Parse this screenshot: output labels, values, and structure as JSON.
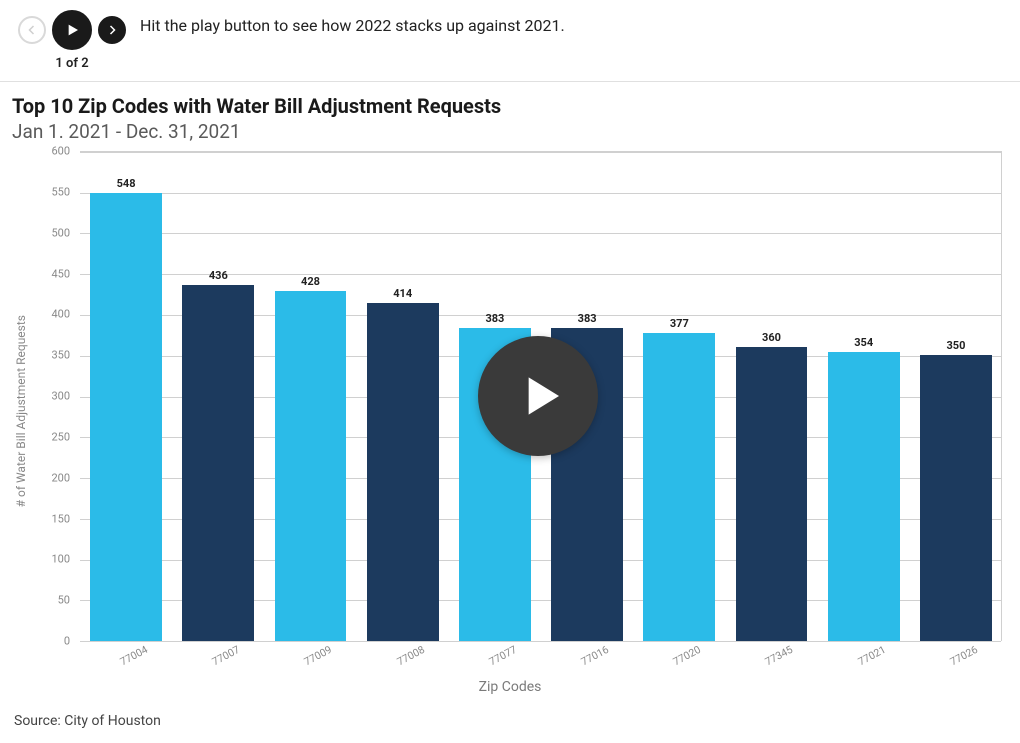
{
  "controls": {
    "counter": "1 of 2",
    "hint": "Hit the play button to see how 2022 stacks up against 2021."
  },
  "chart": {
    "type": "bar",
    "title": "Top 10 Zip Codes with Water Bill Adjustment Requests",
    "subtitle": "Jan 1. 2021 - Dec. 31, 2021",
    "xaxis_title": "Zip Codes",
    "yaxis_title": "# of Water Bill Adjustment Requests",
    "source": "Source: City of Houston",
    "categories": [
      "77004",
      "77007",
      "77009",
      "77008",
      "77077",
      "77016",
      "77020",
      "77345",
      "77021",
      "77026"
    ],
    "values": [
      548,
      436,
      428,
      414,
      383,
      383,
      377,
      360,
      354,
      350
    ],
    "bar_colors": [
      "#2bbbe8",
      "#1c3a5e",
      "#2bbbe8",
      "#1c3a5e",
      "#2bbbe8",
      "#1c3a5e",
      "#2bbbe8",
      "#1c3a5e",
      "#2bbbe8",
      "#1c3a5e"
    ],
    "ylim": [
      0,
      600
    ],
    "ytick_step": 50,
    "yticks": [
      0,
      50,
      100,
      150,
      200,
      250,
      300,
      350,
      400,
      450,
      500,
      550,
      600
    ],
    "grid_color": "#d0d0d0",
    "background_color": "#ffffff",
    "label_fontsize": 11,
    "title_fontsize": 20,
    "bar_width": 0.78
  }
}
